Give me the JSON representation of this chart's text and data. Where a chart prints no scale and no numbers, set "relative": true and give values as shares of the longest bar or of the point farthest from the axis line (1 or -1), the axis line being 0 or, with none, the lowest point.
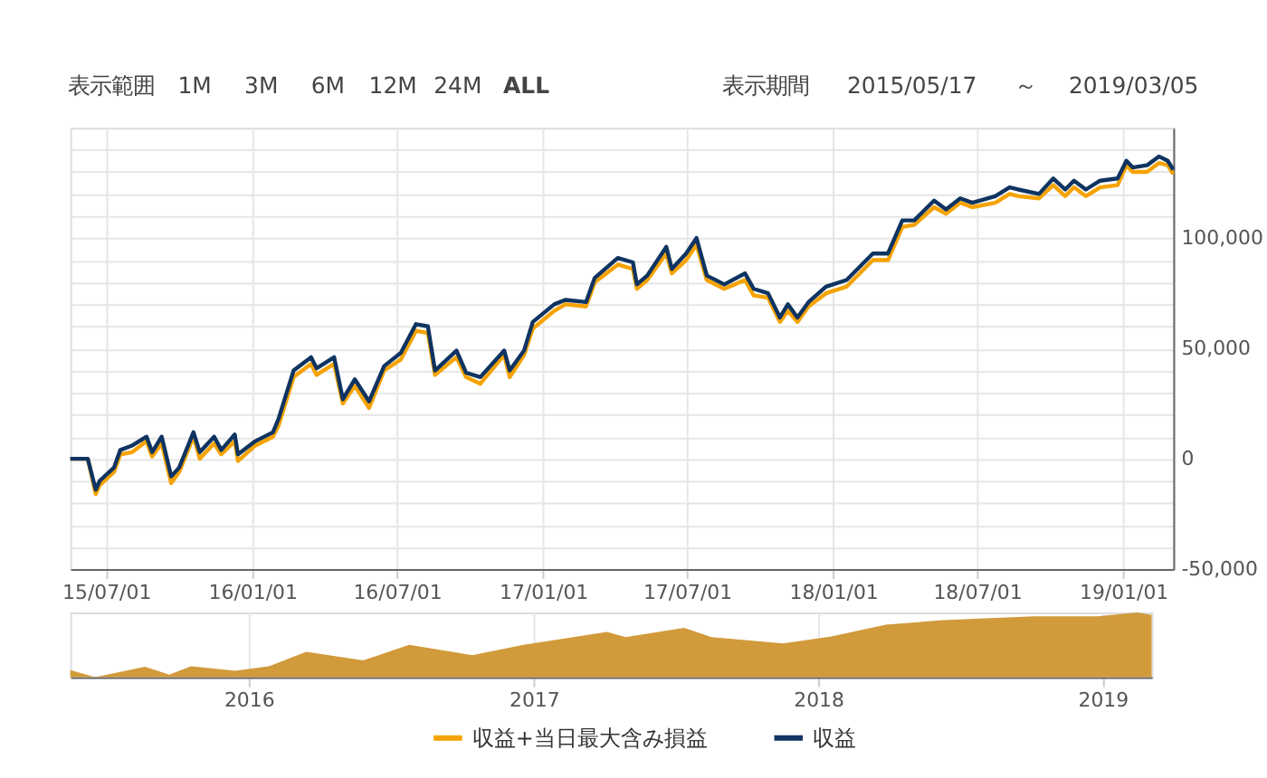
{
  "chart_data": [
    {
      "type": "line",
      "annotations": [
        "表示範囲",
        "1M",
        "3M",
        "6M",
        "12M",
        "24M",
        "ALL",
        "表示期間",
        "2015/05/17",
        "～",
        "2019/03/05"
      ],
      "x": [
        "2015-05-17",
        "2015-06-08",
        "2015-06-18",
        "2015-06-23",
        "2015-07-11",
        "2015-07-19",
        "2015-08-03",
        "2015-08-21",
        "2015-08-28",
        "2015-09-09",
        "2015-09-21",
        "2015-10-01",
        "2015-10-19",
        "2015-10-27",
        "2015-11-14",
        "2015-11-23",
        "2015-12-10",
        "2015-12-14",
        "2016-01-05",
        "2016-01-27",
        "2016-02-03",
        "2016-02-22",
        "2016-03-15",
        "2016-03-22",
        "2016-04-13",
        "2016-04-24",
        "2016-05-09",
        "2016-05-27",
        "2016-06-15",
        "2016-07-06",
        "2016-07-25",
        "2016-08-09",
        "2016-08-18",
        "2016-09-14",
        "2016-09-26",
        "2016-10-14",
        "2016-11-13",
        "2016-11-20",
        "2016-12-08",
        "2016-12-19",
        "2017-01-15",
        "2017-01-29",
        "2017-02-24",
        "2017-03-07",
        "2017-04-05",
        "2017-04-24",
        "2017-04-29",
        "2017-05-12",
        "2017-06-05",
        "2017-06-12",
        "2017-06-30",
        "2017-07-13",
        "2017-07-26",
        "2017-08-17",
        "2017-09-12",
        "2017-09-23",
        "2017-10-11",
        "2017-10-26",
        "2017-11-05",
        "2017-11-17",
        "2017-12-01",
        "2017-12-23",
        "2018-01-18",
        "2018-02-20",
        "2018-03-11",
        "2018-03-29",
        "2018-04-13",
        "2018-05-08",
        "2018-05-23",
        "2018-06-10",
        "2018-06-25",
        "2018-07-24",
        "2018-08-11",
        "2018-08-22",
        "2018-09-17",
        "2018-10-05",
        "2018-10-20",
        "2018-10-31",
        "2018-11-15",
        "2018-12-03",
        "2018-12-25",
        "2019-01-05",
        "2019-01-13",
        "2019-01-31",
        "2019-02-15",
        "2019-02-26",
        "2019-03-05"
      ],
      "series": [
        {
          "name": "収益+当日最大含み損益",
          "color": "#f5a300",
          "values": [
            0,
            0,
            -16000,
            -12000,
            -6000,
            2000,
            3000,
            8000,
            1000,
            7000,
            -11000,
            -6000,
            10000,
            0,
            7000,
            2000,
            8000,
            -1000,
            6000,
            10000,
            15000,
            37000,
            43000,
            38000,
            43000,
            25000,
            33000,
            23000,
            40000,
            45000,
            58000,
            57000,
            38000,
            46000,
            37000,
            34000,
            47000,
            37000,
            47000,
            59000,
            67000,
            70000,
            69000,
            80000,
            88000,
            86000,
            77000,
            81000,
            93000,
            84000,
            90000,
            97000,
            81000,
            77000,
            81000,
            74000,
            73000,
            62000,
            67000,
            62000,
            69000,
            75000,
            78000,
            90000,
            90000,
            105000,
            106000,
            114000,
            111000,
            116000,
            114000,
            116000,
            120000,
            119000,
            118000,
            124000,
            119000,
            123000,
            119000,
            123000,
            124000,
            133000,
            130000,
            130000,
            134000,
            133000,
            129000
          ]
        },
        {
          "name": "収益",
          "color": "#0f3461",
          "values": [
            0,
            0,
            -14000,
            -10000,
            -4000,
            4000,
            6000,
            10000,
            3000,
            10000,
            -8000,
            -4000,
            12000,
            3000,
            10000,
            4000,
            11000,
            2000,
            8000,
            12000,
            18000,
            40000,
            46000,
            41000,
            46000,
            27000,
            36000,
            26000,
            42000,
            48000,
            61000,
            60000,
            40000,
            49000,
            39000,
            37000,
            49000,
            40000,
            49000,
            62000,
            70000,
            72000,
            71000,
            82000,
            91000,
            89000,
            79000,
            83000,
            96000,
            86000,
            93000,
            100000,
            83000,
            79000,
            84000,
            77000,
            75000,
            64000,
            70000,
            64000,
            71000,
            78000,
            81000,
            93000,
            93000,
            108000,
            108000,
            117000,
            113000,
            118000,
            116000,
            119000,
            123000,
            122000,
            120000,
            127000,
            122000,
            126000,
            122000,
            126000,
            127000,
            135000,
            132000,
            133000,
            137000,
            135000,
            131000
          ]
        }
      ],
      "xlim": [
        "2015-05-17",
        "2019-03-05"
      ],
      "xticks": [
        {
          "value": "2015-07-01",
          "label": "15/07/01"
        },
        {
          "value": "2016-01-01",
          "label": "16/01/01"
        },
        {
          "value": "2016-07-01",
          "label": "16/07/01"
        },
        {
          "value": "2017-01-01",
          "label": "17/01/01"
        },
        {
          "value": "2017-07-01",
          "label": "17/07/01"
        },
        {
          "value": "2018-01-01",
          "label": "18/01/01"
        },
        {
          "value": "2018-07-01",
          "label": "18/07/01"
        },
        {
          "value": "2019-01-01",
          "label": "19/01/01"
        }
      ],
      "ylim": [
        -50000,
        150000
      ],
      "yticks": [
        {
          "value": -50000,
          "label": "-50,000"
        },
        {
          "value": -40000,
          "label": null
        },
        {
          "value": -30000,
          "label": null
        },
        {
          "value": -20000,
          "label": null
        },
        {
          "value": -10000,
          "label": null
        },
        0,
        {
          "value": 10000,
          "label": null
        },
        {
          "value": 20000,
          "label": null
        },
        {
          "value": 30000,
          "label": null
        },
        {
          "value": 40000,
          "label": null
        },
        {
          "value": 50000,
          "label": "50,000"
        },
        {
          "value": 60000,
          "label": null
        },
        {
          "value": 70000,
          "label": null
        },
        {
          "value": 80000,
          "label": null
        },
        {
          "value": 90000,
          "label": null
        },
        {
          "value": 100000,
          "label": "100,000"
        },
        {
          "value": 110000,
          "label": null
        },
        {
          "value": 120000,
          "label": null
        },
        {
          "value": 130000,
          "label": null
        },
        {
          "value": 140000,
          "label": null
        }
      ],
      "grid": true,
      "legend": "bottom",
      "marker": "none",
      "line_style": "solid"
    },
    {
      "type": "area",
      "relative": true,
      "x": [
        "2015-05-17",
        "2015-06-18",
        "2015-08-21",
        "2015-09-21",
        "2015-10-19",
        "2015-12-14",
        "2016-01-27",
        "2016-03-15",
        "2016-05-27",
        "2016-07-25",
        "2016-10-14",
        "2016-12-19",
        "2017-04-05",
        "2017-04-29",
        "2017-07-13",
        "2017-08-17",
        "2017-11-17",
        "2018-01-18",
        "2018-03-29",
        "2018-06-10",
        "2018-10-05",
        "2018-12-25",
        "2019-02-15",
        "2019-03-05"
      ],
      "series": [
        {
          "color": "#d19a3b",
          "values": [
            0.11,
            0,
            0.16,
            0.04,
            0.17,
            0.1,
            0.17,
            0.39,
            0.26,
            0.5,
            0.34,
            0.5,
            0.7,
            0.62,
            0.76,
            0.62,
            0.52,
            0.63,
            0.81,
            0.88,
            0.94,
            0.94,
            1,
            0.96
          ]
        }
      ],
      "xlim": [
        "2015-05-17",
        "2019-03-05"
      ],
      "xticks": [
        {
          "value": "2016-01-01",
          "label": "2016"
        },
        {
          "value": "2017-01-01",
          "label": "2017"
        },
        {
          "value": "2018-01-01",
          "label": "2018"
        },
        {
          "value": "2019-01-01",
          "label": "2019"
        }
      ],
      "grid": "x"
    }
  ]
}
